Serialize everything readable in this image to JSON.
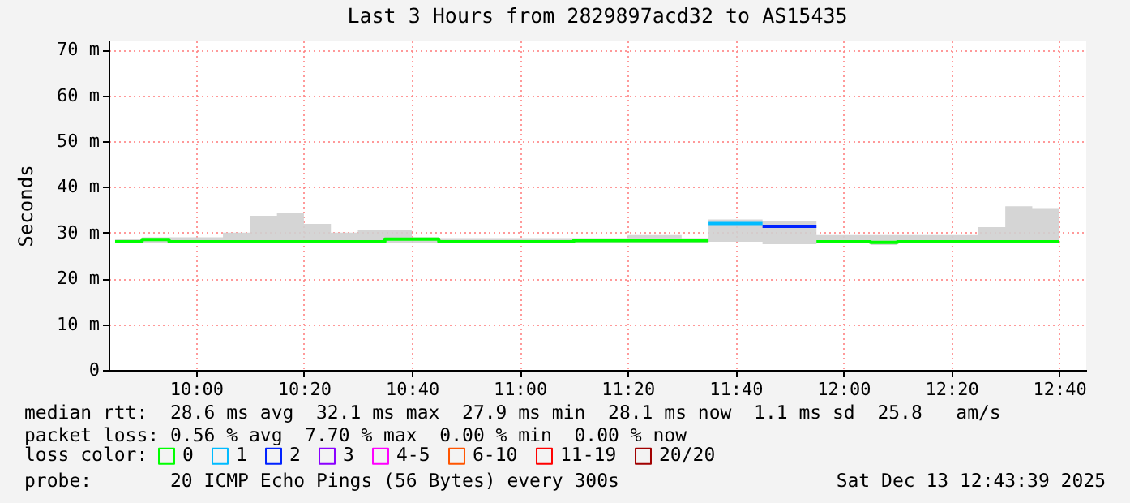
{
  "chart_data": {
    "type": "step",
    "title": "Last 3 Hours from 2829897acd32 to AS15435",
    "ylabel": "Seconds",
    "legend_title": "loss color:",
    "legend": "bottom",
    "grid": true,
    "x": [
      9.75,
      9.8333,
      9.9167,
      10,
      10.0833,
      10.1667,
      10.25,
      10.3333,
      10.4167,
      10.5,
      10.5833,
      10.6667,
      10.75,
      10.8333,
      10.9167,
      11,
      11.0833,
      11.1667,
      11.25,
      11.3333,
      11.4167,
      11.5,
      11.5833,
      11.6667,
      11.75,
      11.8333,
      11.9167,
      12,
      12.0833,
      12.1667,
      12.25,
      12.3333,
      12.4167,
      12.5,
      12.5833,
      12.6667
    ],
    "xlim": [
      9.73,
      12.75
    ],
    "xticks": [
      {
        "value": 10,
        "label": "10:00"
      },
      {
        "value": 10.3333,
        "label": "10:20"
      },
      {
        "value": 10.6667,
        "label": "10:40"
      },
      {
        "value": 11,
        "label": "11:00"
      },
      {
        "value": 11.3333,
        "label": "11:20"
      },
      {
        "value": 11.6667,
        "label": "11:40"
      },
      {
        "value": 12,
        "label": "12:00"
      },
      {
        "value": 12.3333,
        "label": "12:20"
      },
      {
        "value": 12.6667,
        "label": "12:40"
      }
    ],
    "ylim": [
      0,
      72
    ],
    "yticks": [
      {
        "value": 0,
        "label": "0"
      },
      {
        "value": 10,
        "label": "10 m"
      },
      {
        "value": 20,
        "label": "20 m"
      },
      {
        "value": 30,
        "label": "30 m"
      },
      {
        "value": 40,
        "label": "40 m"
      },
      {
        "value": 50,
        "label": "50 m"
      },
      {
        "value": 60,
        "label": "60 m"
      },
      {
        "value": 70,
        "label": "70 m"
      }
    ],
    "series": [
      {
        "name": "0",
        "color": "#00ff00",
        "values": [
          28.0,
          28.5,
          28.0,
          28.0,
          28.0,
          28.0,
          28.0,
          28.0,
          28.0,
          28.0,
          28.6,
          28.6,
          28.0,
          28.0,
          28.0,
          28.0,
          28.0,
          28.3,
          28.3,
          28.3,
          28.3,
          28.3,
          28.3,
          null,
          null,
          null,
          28.0,
          28.0,
          27.9,
          28.0,
          28.0,
          28.0,
          28.0,
          28.0,
          28.0,
          28.0
        ],
        "lower": [
          27.8,
          27.8,
          27.8,
          27.8,
          27.8,
          28.0,
          28.0,
          27.8,
          27.8,
          27.8,
          27.8,
          27.8,
          27.8,
          27.8,
          27.8,
          27.8,
          27.8,
          27.8,
          27.8,
          27.8,
          27.8,
          27.8,
          28.0,
          28.0,
          27.5,
          27.5,
          27.8,
          27.8,
          27.3,
          27.8,
          27.8,
          27.8,
          27.8,
          27.8,
          27.8,
          27.8
        ],
        "upper": [
          28.7,
          29.0,
          29.0,
          29.0,
          30.0,
          33.7,
          34.3,
          31.9,
          30.0,
          30.7,
          30.7,
          29.0,
          28.8,
          28.8,
          28.8,
          28.8,
          28.8,
          28.8,
          28.8,
          29.5,
          29.5,
          28.8,
          32.9,
          32.9,
          32.5,
          32.5,
          29.5,
          29.5,
          29.5,
          29.5,
          29.5,
          29.5,
          31.2,
          35.8,
          35.4,
          35.4
        ]
      },
      {
        "name": "1",
        "color": "#00bbff",
        "x": [
          11.5833,
          11.6667,
          11.75
        ],
        "values": [
          32.0,
          32.0,
          32.0
        ]
      },
      {
        "name": "2",
        "color": "#0022ff",
        "x": [
          11.75,
          11.8333,
          11.9167
        ],
        "values": [
          31.4,
          31.4,
          31.4
        ]
      },
      {
        "name": "3",
        "color": "#8a00ff",
        "values": [
          null,
          null,
          null,
          null,
          null,
          null,
          null,
          null,
          null,
          null,
          null,
          null,
          null,
          null,
          null,
          null,
          null,
          null,
          null,
          null,
          null,
          null,
          null,
          null,
          null,
          null,
          null,
          null,
          null,
          null,
          null,
          null,
          null,
          null,
          null,
          null
        ]
      },
      {
        "name": "4-5",
        "color": "#ff00ff",
        "values": [
          null,
          null,
          null,
          null,
          null,
          null,
          null,
          null,
          null,
          null,
          null,
          null,
          null,
          null,
          null,
          null,
          null,
          null,
          null,
          null,
          null,
          null,
          null,
          null,
          null,
          null,
          null,
          null,
          null,
          null,
          null,
          null,
          null,
          null,
          null,
          null
        ]
      },
      {
        "name": "6-10",
        "color": "#ff5500",
        "values": [
          null,
          null,
          null,
          null,
          null,
          null,
          null,
          null,
          null,
          null,
          null,
          null,
          null,
          null,
          null,
          null,
          null,
          null,
          null,
          null,
          null,
          null,
          null,
          null,
          null,
          null,
          null,
          null,
          null,
          null,
          null,
          null,
          null,
          null,
          null,
          null
        ]
      },
      {
        "name": "11-19",
        "color": "#ff0000",
        "values": [
          null,
          null,
          null,
          null,
          null,
          null,
          null,
          null,
          null,
          null,
          null,
          null,
          null,
          null,
          null,
          null,
          null,
          null,
          null,
          null,
          null,
          null,
          null,
          null,
          null,
          null,
          null,
          null,
          null,
          null,
          null,
          null,
          null,
          null,
          null,
          null
        ]
      },
      {
        "name": "20/20",
        "color": "#a10000",
        "values": [
          null,
          null,
          null,
          null,
          null,
          null,
          null,
          null,
          null,
          null,
          null,
          null,
          null,
          null,
          null,
          null,
          null,
          null,
          null,
          null,
          null,
          null,
          null,
          null,
          null,
          null,
          null,
          null,
          null,
          null,
          null,
          null,
          null,
          null,
          null,
          null
        ]
      }
    ],
    "annotations": [
      "median rtt:  28.6 ms avg  32.1 ms max  27.9 ms min  28.1 ms now  1.1 ms sd  25.8   am/s",
      "packet loss: 0.56 % avg  7.70 % max  0.00 % min  0.00 % now",
      "probe:       20 ICMP Echo Pings (56 Bytes) every 300s",
      "Sat Dec 13 12:43:39 2025"
    ]
  }
}
